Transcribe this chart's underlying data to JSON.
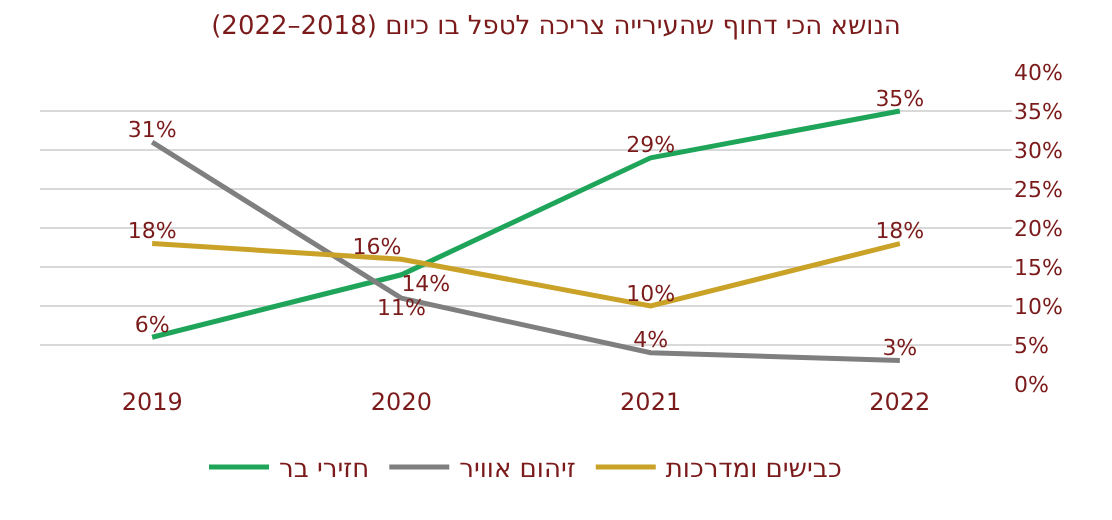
{
  "chart_data": {
    "type": "line",
    "title": "הנושא הכי דחוף שהעירייה צריכה לטפל בו כיום (2018–2022)",
    "categories": [
      "2019",
      "2020",
      "2021",
      "2022"
    ],
    "series": [
      {
        "name": "חזירי בר",
        "color": "#1fa55a",
        "values": [
          6,
          14,
          29,
          35
        ],
        "value_labels": [
          "6%",
          "14%",
          "29%",
          "35%"
        ]
      },
      {
        "name": "זיהום אוויר",
        "color": "#7f7f7f",
        "values": [
          31,
          11,
          4,
          3
        ],
        "value_labels": [
          "31%",
          "11%",
          "4%",
          "3%"
        ]
      },
      {
        "name": "כבישים ומדרכות",
        "color": "#c9a227",
        "values": [
          18,
          16,
          10,
          18
        ],
        "value_labels": [
          "18%",
          "16%",
          "10%",
          "18%"
        ]
      }
    ],
    "ylim": [
      0,
      40
    ],
    "yticks": [
      {
        "value": 0,
        "label": "0%"
      },
      {
        "value": 5,
        "label": "5%"
      },
      {
        "value": 10,
        "label": "10%"
      },
      {
        "value": 15,
        "label": "15%"
      },
      {
        "value": 20,
        "label": "20%"
      },
      {
        "value": 25,
        "label": "25%"
      },
      {
        "value": 30,
        "label": "30%"
      },
      {
        "value": 35,
        "label": "35%"
      },
      {
        "value": 40,
        "label": "40%"
      }
    ],
    "grid": "y",
    "legend": "bottom",
    "marker": "none",
    "line_style": "solid"
  }
}
